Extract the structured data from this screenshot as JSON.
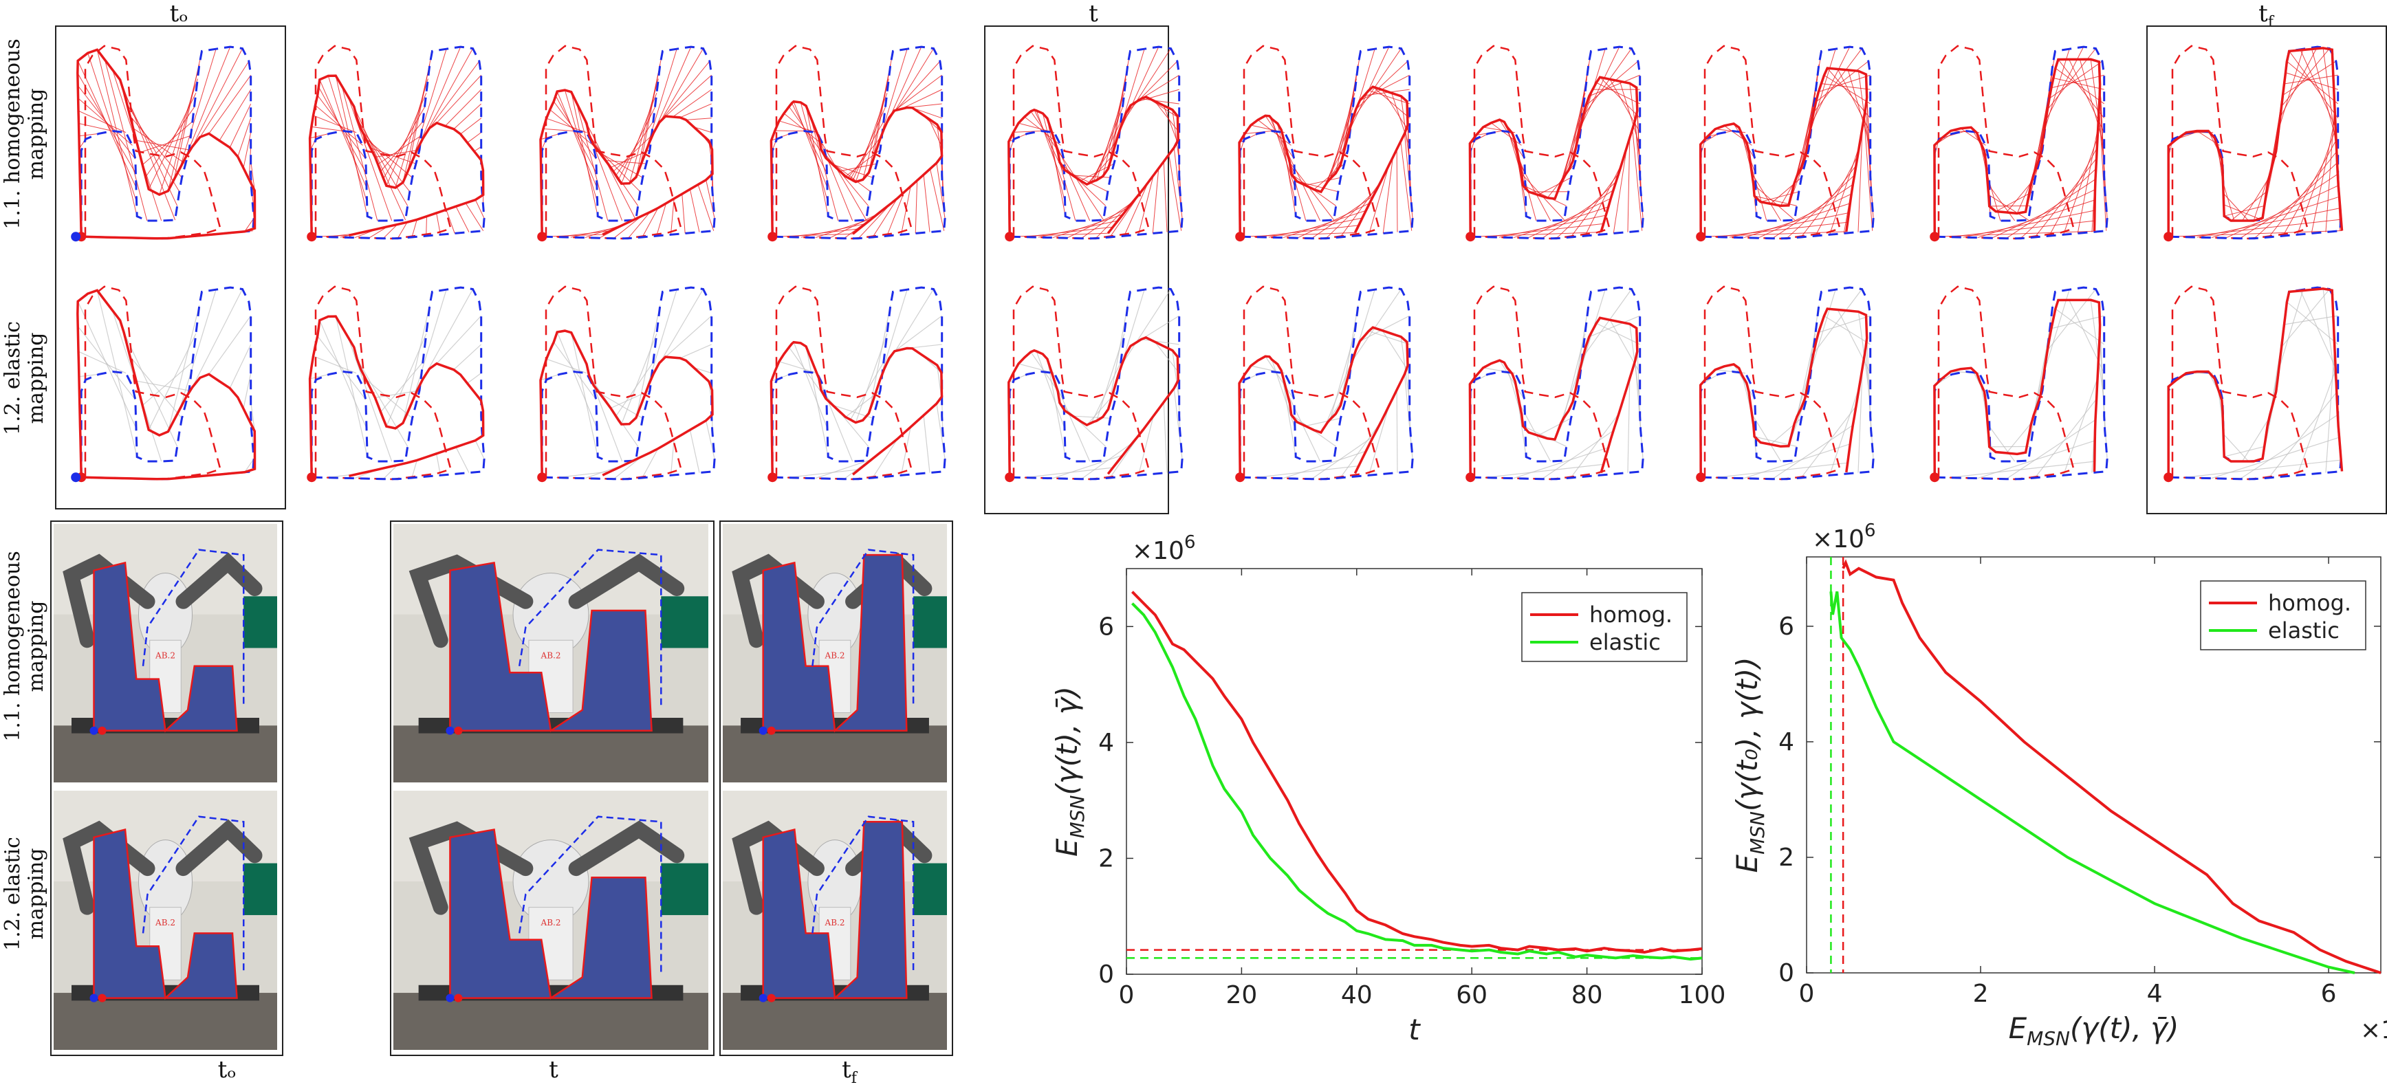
{
  "column_labels": {
    "t0": "tₒ",
    "t": "t",
    "tf": "t_f"
  },
  "time_labels": {
    "t0": "tₒ",
    "t": "t",
    "tf": "t",
    "tf_sub": "f"
  },
  "row_labels": {
    "homog_line1": "1.1. homogeneous",
    "homog_line2": "mapping",
    "elastic_line1": "1.2. elastic",
    "elastic_line2": "mapping"
  },
  "photo_text": {
    "label": "AB.2"
  },
  "colors": {
    "homog": "#e8191b",
    "elastic": "#21e81b",
    "blue": "#1c2de8",
    "red": "#e8191b"
  },
  "chart_data": [
    {
      "type": "line",
      "xlabel": "t",
      "ylabel": "E_MSN(γ(t), γ̄)",
      "ylabel_main": "E",
      "ylabel_sub": "MSN",
      "ylabel_rest": "(γ(t), γ̄)",
      "exponent": "×10",
      "exponent_power": "6",
      "xlim": [
        0,
        100
      ],
      "ylim": [
        0,
        7
      ],
      "xticks": [
        "0",
        "20",
        "40",
        "60",
        "80",
        "100"
      ],
      "yticks": [
        "0",
        "2",
        "4",
        "6"
      ],
      "legend": [
        "homog.",
        "elastic"
      ],
      "series": [
        {
          "name": "homog.",
          "x": [
            1,
            3,
            5,
            8,
            10,
            12,
            15,
            17,
            20,
            22,
            25,
            28,
            30,
            33,
            35,
            38,
            40,
            42,
            45,
            48,
            50,
            53,
            55,
            58,
            60,
            63,
            65,
            68,
            70,
            73,
            75,
            78,
            80,
            83,
            85,
            88,
            90,
            93,
            95,
            98,
            100
          ],
          "values": [
            6.6,
            6.4,
            6.2,
            5.7,
            5.6,
            5.4,
            5.1,
            4.8,
            4.4,
            4.0,
            3.5,
            3.0,
            2.6,
            2.1,
            1.8,
            1.4,
            1.1,
            0.95,
            0.85,
            0.7,
            0.65,
            0.6,
            0.55,
            0.5,
            0.48,
            0.5,
            0.45,
            0.42,
            0.48,
            0.45,
            0.42,
            0.44,
            0.4,
            0.45,
            0.42,
            0.4,
            0.38,
            0.44,
            0.4,
            0.42,
            0.44
          ]
        },
        {
          "name": "elastic",
          "x": [
            1,
            3,
            5,
            8,
            10,
            12,
            15,
            17,
            20,
            22,
            25,
            28,
            30,
            33,
            35,
            38,
            40,
            42,
            45,
            48,
            50,
            53,
            55,
            58,
            60,
            63,
            65,
            68,
            70,
            73,
            75,
            78,
            80,
            83,
            85,
            88,
            90,
            93,
            95,
            98,
            100
          ],
          "values": [
            6.4,
            6.2,
            5.9,
            5.3,
            4.8,
            4.4,
            3.6,
            3.2,
            2.8,
            2.4,
            2.0,
            1.7,
            1.45,
            1.2,
            1.05,
            0.9,
            0.75,
            0.7,
            0.6,
            0.58,
            0.5,
            0.5,
            0.45,
            0.42,
            0.4,
            0.42,
            0.38,
            0.35,
            0.4,
            0.35,
            0.38,
            0.3,
            0.33,
            0.3,
            0.28,
            0.32,
            0.3,
            0.28,
            0.3,
            0.26,
            0.28
          ]
        }
      ],
      "thresholds": [
        {
          "name": "homog.",
          "value": 0.42
        },
        {
          "name": "elastic",
          "value": 0.28
        }
      ]
    },
    {
      "type": "line",
      "xlabel": "E_MSN(γ(t), γ̄)",
      "xlabel_main": "E",
      "xlabel_sub": "MSN",
      "xlabel_rest": "(γ(t), γ̄)",
      "ylabel": "E_MSN(γ(t0), γ(t))",
      "ylabel_main": "E",
      "ylabel_sub": "MSN",
      "ylabel_rest": "(γ(t₀), γ(t))",
      "exponent": "×10",
      "exponent_power": "6",
      "xlim": [
        0,
        6.6
      ],
      "ylim": [
        0,
        7.2
      ],
      "xticks": [
        "0",
        "2",
        "4",
        "6"
      ],
      "yticks": [
        "0",
        "2",
        "4",
        "6"
      ],
      "legend": [
        "homog.",
        "elastic"
      ],
      "series": [
        {
          "name": "homog.",
          "x": [
            0.42,
            0.45,
            0.5,
            0.6,
            0.8,
            1.0,
            1.1,
            1.3,
            1.6,
            2.0,
            2.5,
            3.0,
            3.5,
            4.0,
            4.3,
            4.6,
            4.9,
            5.2,
            5.6,
            5.9,
            6.2,
            6.5,
            6.6
          ],
          "values": [
            7.0,
            7.1,
            6.9,
            7.0,
            6.85,
            6.8,
            6.4,
            5.8,
            5.2,
            4.7,
            4.0,
            3.4,
            2.8,
            2.3,
            2.0,
            1.7,
            1.2,
            0.9,
            0.7,
            0.4,
            0.2,
            0.05,
            0.0
          ]
        },
        {
          "name": "elastic",
          "x": [
            0.28,
            0.3,
            0.35,
            0.4,
            0.5,
            0.6,
            0.8,
            1.0,
            1.3,
            1.6,
            2.0,
            2.5,
            3.0,
            3.5,
            4.0,
            4.5,
            5.0,
            5.5,
            6.0,
            6.3
          ],
          "values": [
            6.6,
            6.2,
            6.6,
            5.8,
            5.6,
            5.3,
            4.6,
            4.0,
            3.7,
            3.4,
            3.0,
            2.5,
            2.0,
            1.6,
            1.2,
            0.9,
            0.6,
            0.35,
            0.1,
            0.0
          ]
        }
      ],
      "thresholds": [
        {
          "name": "homog.",
          "value": 0.42
        },
        {
          "name": "elastic",
          "value": 0.28
        }
      ]
    }
  ]
}
